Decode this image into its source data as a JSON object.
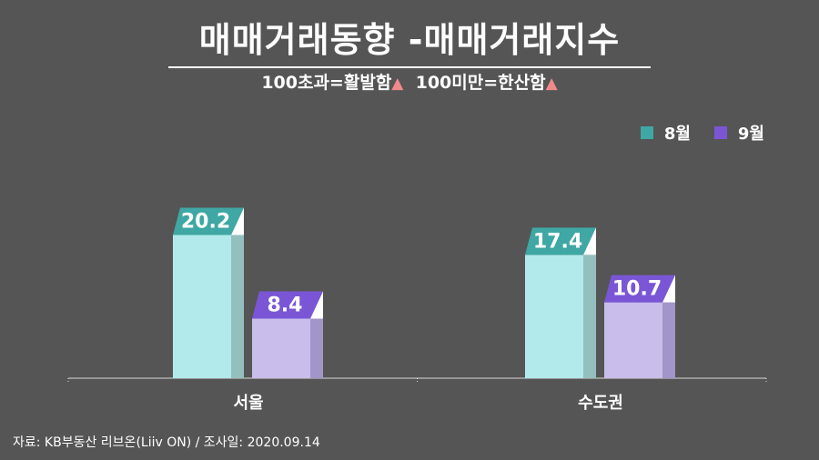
{
  "title": "매매거래동향 -매매거래지수",
  "subtitle": {
    "part1": "100초과=활발함",
    "part2": "100미만=한산함",
    "marker": "▲"
  },
  "source_note": "자료: KB부동산 리브온(Liiv ON)  / 조사일: 2020.09.14",
  "chart_data": {
    "type": "bar",
    "title": "매매거래동향 -매매거래지수",
    "categories": [
      "서울",
      "수도권"
    ],
    "series": [
      {
        "name": "8월",
        "values": [
          20.2,
          17.4
        ],
        "color": "#b2eaec",
        "side_color": "#93bfbf",
        "label_color": "#3fa7a4"
      },
      {
        "name": "9월",
        "values": [
          8.4,
          10.7
        ],
        "color": "#c8bdeb",
        "side_color": "#a295c9",
        "label_color": "#7a56d6"
      }
    ],
    "legend_position": "top-right",
    "grid": false,
    "ylim": [
      0,
      30
    ]
  }
}
